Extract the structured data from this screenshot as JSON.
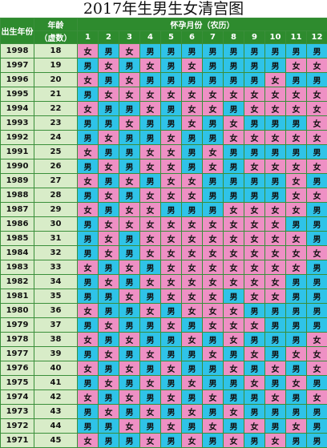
{
  "title": "2017年生男生女清宫图",
  "headers": {
    "birth_year": "出生年份",
    "age_line1": "年龄",
    "age_line2": "（虚数）",
    "month_group": "怀孕月份（农历）",
    "months": [
      "1",
      "2",
      "3",
      "4",
      "5",
      "6",
      "7",
      "8",
      "9",
      "10",
      "11",
      "12"
    ]
  },
  "colors": {
    "male": "#2fc3e8",
    "female": "#ee90c4",
    "header": "#2e8b2e",
    "side": "#d8ecc8"
  },
  "rows": [
    {
      "year": "1998",
      "age": "18",
      "cells": [
        "女",
        "男",
        "女",
        "男",
        "男",
        "男",
        "男",
        "男",
        "男",
        "男",
        "男",
        "男"
      ]
    },
    {
      "year": "1997",
      "age": "19",
      "cells": [
        "男",
        "女",
        "男",
        "女",
        "男",
        "女",
        "男",
        "男",
        "男",
        "男",
        "女",
        "女"
      ]
    },
    {
      "year": "1996",
      "age": "20",
      "cells": [
        "女",
        "男",
        "女",
        "男",
        "男",
        "男",
        "男",
        "男",
        "男",
        "女",
        "男",
        "男"
      ]
    },
    {
      "year": "1995",
      "age": "21",
      "cells": [
        "男",
        "女",
        "女",
        "女",
        "女",
        "女",
        "女",
        "女",
        "女",
        "女",
        "女",
        "女"
      ]
    },
    {
      "year": "1994",
      "age": "22",
      "cells": [
        "女",
        "男",
        "男",
        "女",
        "男",
        "女",
        "女",
        "男",
        "女",
        "女",
        "女",
        "女"
      ]
    },
    {
      "year": "1993",
      "age": "23",
      "cells": [
        "男",
        "男",
        "女",
        "男",
        "男",
        "女",
        "男",
        "女",
        "男",
        "男",
        "男",
        "女"
      ]
    },
    {
      "year": "1992",
      "age": "24",
      "cells": [
        "男",
        "女",
        "男",
        "男",
        "女",
        "男",
        "男",
        "女",
        "女",
        "女",
        "女",
        "女"
      ]
    },
    {
      "year": "1991",
      "age": "25",
      "cells": [
        "女",
        "男",
        "男",
        "女",
        "女",
        "男",
        "女",
        "男",
        "男",
        "男",
        "男",
        "男"
      ]
    },
    {
      "year": "1990",
      "age": "26",
      "cells": [
        "男",
        "女",
        "男",
        "女",
        "女",
        "男",
        "女",
        "男",
        "女",
        "女",
        "女",
        "女"
      ]
    },
    {
      "year": "1989",
      "age": "27",
      "cells": [
        "女",
        "男",
        "女",
        "男",
        "女",
        "女",
        "男",
        "男",
        "男",
        "男",
        "女",
        "男"
      ]
    },
    {
      "year": "1988",
      "age": "28",
      "cells": [
        "男",
        "女",
        "男",
        "女",
        "女",
        "女",
        "男",
        "男",
        "男",
        "男",
        "女",
        "女"
      ]
    },
    {
      "year": "1987",
      "age": "29",
      "cells": [
        "女",
        "男",
        "女",
        "女",
        "男",
        "男",
        "男",
        "女",
        "女",
        "女",
        "女",
        "男"
      ]
    },
    {
      "year": "1986",
      "age": "30",
      "cells": [
        "男",
        "女",
        "女",
        "女",
        "女",
        "女",
        "女",
        "女",
        "女",
        "女",
        "男",
        "男"
      ]
    },
    {
      "year": "1985",
      "age": "31",
      "cells": [
        "男",
        "女",
        "男",
        "女",
        "女",
        "女",
        "女",
        "女",
        "女",
        "女",
        "女",
        "男"
      ]
    },
    {
      "year": "1984",
      "age": "32",
      "cells": [
        "男",
        "女",
        "男",
        "女",
        "女",
        "女",
        "女",
        "女",
        "女",
        "女",
        "女",
        "女"
      ]
    },
    {
      "year": "1983",
      "age": "33",
      "cells": [
        "女",
        "男",
        "女",
        "男",
        "女",
        "女",
        "女",
        "女",
        "女",
        "女",
        "女",
        "男"
      ]
    },
    {
      "year": "1982",
      "age": "34",
      "cells": [
        "男",
        "女",
        "男",
        "女",
        "女",
        "女",
        "女",
        "女",
        "女",
        "女",
        "男",
        "男"
      ]
    },
    {
      "year": "1981",
      "age": "35",
      "cells": [
        "男",
        "男",
        "女",
        "男",
        "女",
        "女",
        "女",
        "男",
        "女",
        "女",
        "男",
        "男"
      ]
    },
    {
      "year": "1980",
      "age": "36",
      "cells": [
        "女",
        "男",
        "男",
        "女",
        "男",
        "女",
        "女",
        "女",
        "男",
        "男",
        "男",
        "男"
      ]
    },
    {
      "year": "1979",
      "age": "37",
      "cells": [
        "男",
        "女",
        "男",
        "男",
        "女",
        "男",
        "女",
        "女",
        "女",
        "男",
        "男",
        "男"
      ]
    },
    {
      "year": "1978",
      "age": "38",
      "cells": [
        "女",
        "男",
        "女",
        "男",
        "男",
        "女",
        "男",
        "女",
        "男",
        "男",
        "男",
        "女"
      ]
    },
    {
      "year": "1977",
      "age": "39",
      "cells": [
        "男",
        "女",
        "男",
        "女",
        "男",
        "男",
        "女",
        "男",
        "女",
        "男",
        "女",
        "女"
      ]
    },
    {
      "year": "1976",
      "age": "40",
      "cells": [
        "女",
        "男",
        "女",
        "男",
        "女",
        "男",
        "男",
        "女",
        "男",
        "女",
        "男",
        "女"
      ]
    },
    {
      "year": "1975",
      "age": "41",
      "cells": [
        "男",
        "女",
        "男",
        "女",
        "男",
        "女",
        "男",
        "男",
        "女",
        "男",
        "女",
        "男"
      ]
    },
    {
      "year": "1974",
      "age": "42",
      "cells": [
        "女",
        "男",
        "女",
        "男",
        "女",
        "男",
        "女",
        "男",
        "男",
        "女",
        "男",
        "女"
      ]
    },
    {
      "year": "1973",
      "age": "43",
      "cells": [
        "男",
        "女",
        "男",
        "女",
        "男",
        "女",
        "男",
        "女",
        "男",
        "男",
        "男",
        "男"
      ]
    },
    {
      "year": "1972",
      "age": "44",
      "cells": [
        "男",
        "男",
        "女",
        "男",
        "女",
        "男",
        "女",
        "男",
        "女",
        "男",
        "女",
        "男"
      ]
    },
    {
      "year": "1971",
      "age": "45",
      "cells": [
        "女",
        "男",
        "男",
        "女",
        "男",
        "女",
        "男",
        "女",
        "男",
        "女",
        "男",
        "男"
      ]
    }
  ]
}
